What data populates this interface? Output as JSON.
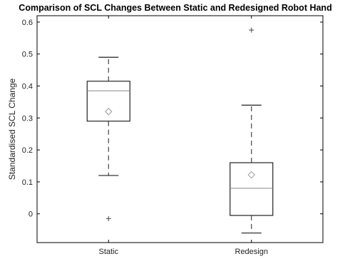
{
  "chart_data": {
    "type": "box",
    "title": "Comparison of SCL Changes Between Static and Redesigned Robot Hand",
    "xlabel": "",
    "ylabel": "Standardised SCL Change",
    "ylim": [
      -0.09,
      0.62
    ],
    "yticks": [
      0,
      0.1,
      0.2,
      0.3,
      0.4,
      0.5,
      0.6
    ],
    "ytick_labels": [
      "0",
      "0.1",
      "0.2",
      "0.3",
      "0.4",
      "0.5",
      "0.6"
    ],
    "categories": [
      "Static",
      "Redesign"
    ],
    "boxes": [
      {
        "name": "Static",
        "whisker_low": 0.12,
        "q1": 0.29,
        "median": 0.385,
        "q3": 0.415,
        "whisker_high": 0.49,
        "mean": 0.32,
        "outliers": [
          -0.015
        ]
      },
      {
        "name": "Redesign",
        "whisker_low": -0.06,
        "q1": -0.005,
        "median": 0.08,
        "q3": 0.16,
        "whisker_high": 0.34,
        "mean": 0.122,
        "outliers": [
          0.575
        ]
      }
    ],
    "grid": false,
    "legend": "none"
  }
}
